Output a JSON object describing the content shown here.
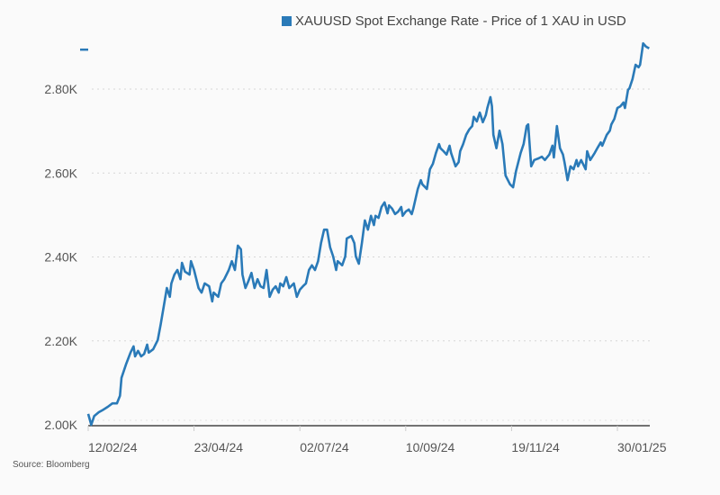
{
  "chart_data": {
    "type": "line",
    "title": "",
    "legend": {
      "label": "XAUUSD Spot Exchange Rate - Price of 1 XAU in USD",
      "placement": "top-right"
    },
    "source": "Source: Bloomberg",
    "color": "#2a7ab8",
    "x_unit": "days since 12/02/24",
    "xlim": [
      0,
      371
    ],
    "ylim": [
      2000,
      2920
    ],
    "x_ticks": [
      {
        "value": 0,
        "label": "12/02/24"
      },
      {
        "value": 70,
        "label": "23/04/24"
      },
      {
        "value": 140,
        "label": "02/07/24"
      },
      {
        "value": 210,
        "label": "10/09/24"
      },
      {
        "value": 280,
        "label": "19/11/24"
      },
      {
        "value": 350,
        "label": "30/01/25"
      }
    ],
    "y_ticks": [
      {
        "value": 2000,
        "label": "2.00K"
      },
      {
        "value": 2200,
        "label": "2.20K"
      },
      {
        "value": 2400,
        "label": "2.40K"
      },
      {
        "value": 2600,
        "label": "2.60K"
      },
      {
        "value": 2800,
        "label": "2.80K"
      }
    ],
    "last_value_marker": 2894,
    "grid": true,
    "x": [
      0,
      2,
      4,
      7,
      10,
      13,
      16,
      19,
      21,
      22,
      25,
      28,
      30,
      31,
      33,
      35,
      37,
      39,
      40,
      43,
      46,
      48,
      50,
      52,
      54,
      55,
      57,
      59,
      61,
      62,
      64,
      67,
      68,
      70,
      73,
      75,
      77,
      80,
      82,
      83,
      86,
      88,
      90,
      93,
      95,
      97,
      99,
      101,
      102,
      104,
      106,
      108,
      110,
      112,
      114,
      116,
      118,
      120,
      122,
      124,
      126,
      127,
      129,
      131,
      133,
      136,
      138,
      140,
      142,
      144,
      146,
      148,
      150,
      152,
      154,
      156,
      158,
      160,
      162,
      164,
      165,
      168,
      170,
      171,
      174,
      176,
      177,
      179,
      181,
      183,
      185,
      187,
      189,
      190,
      192,
      194,
      196,
      198,
      199,
      201,
      203,
      205,
      207,
      208,
      210,
      212,
      214,
      215,
      218,
      220,
      221,
      224,
      226,
      228,
      230,
      232,
      233,
      235,
      237,
      239,
      240,
      243,
      245,
      246,
      248,
      250,
      252,
      254,
      255,
      257,
      259,
      261,
      263,
      264,
      266,
      267,
      268,
      270,
      272,
      274,
      276,
      279,
      281,
      283,
      286,
      288,
      290,
      291,
      293,
      295,
      298,
      300,
      302,
      305,
      307,
      308,
      310,
      312,
      314,
      315,
      317,
      319,
      321,
      323,
      324,
      326,
      329,
      330,
      332,
      335,
      337,
      339,
      340,
      343,
      345,
      346,
      348,
      350,
      352,
      354,
      355,
      357,
      358,
      360,
      362,
      364,
      365,
      367,
      369,
      371
    ],
    "values": [
      2026,
      2000,
      2021,
      2030,
      2036,
      2043,
      2051,
      2051,
      2069,
      2112,
      2144,
      2172,
      2187,
      2163,
      2176,
      2163,
      2169,
      2191,
      2172,
      2180,
      2202,
      2240,
      2283,
      2326,
      2305,
      2337,
      2358,
      2369,
      2347,
      2386,
      2365,
      2358,
      2390,
      2369,
      2326,
      2315,
      2337,
      2330,
      2294,
      2315,
      2305,
      2337,
      2347,
      2369,
      2390,
      2369,
      2427,
      2418,
      2358,
      2326,
      2343,
      2362,
      2326,
      2347,
      2330,
      2326,
      2369,
      2305,
      2322,
      2330,
      2315,
      2337,
      2330,
      2352,
      2326,
      2337,
      2305,
      2322,
      2330,
      2337,
      2369,
      2380,
      2369,
      2390,
      2433,
      2465,
      2465,
      2423,
      2401,
      2369,
      2390,
      2380,
      2401,
      2444,
      2450,
      2433,
      2401,
      2384,
      2433,
      2487,
      2465,
      2498,
      2476,
      2498,
      2493,
      2519,
      2530,
      2504,
      2523,
      2515,
      2502,
      2508,
      2519,
      2498,
      2508,
      2513,
      2502,
      2515,
      2562,
      2583,
      2573,
      2562,
      2609,
      2622,
      2648,
      2669,
      2659,
      2652,
      2644,
      2665,
      2648,
      2616,
      2626,
      2652,
      2669,
      2691,
      2704,
      2712,
      2734,
      2723,
      2744,
      2721,
      2738,
      2755,
      2781,
      2759,
      2691,
      2659,
      2701,
      2669,
      2594,
      2573,
      2566,
      2605,
      2648,
      2669,
      2712,
      2716,
      2616,
      2631,
      2635,
      2639,
      2631,
      2644,
      2665,
      2637,
      2712,
      2659,
      2644,
      2626,
      2583,
      2616,
      2609,
      2631,
      2616,
      2631,
      2609,
      2652,
      2631,
      2648,
      2661,
      2673,
      2665,
      2691,
      2701,
      2716,
      2729,
      2755,
      2759,
      2768,
      2755,
      2798,
      2802,
      2824,
      2858,
      2852,
      2858,
      2909,
      2901,
      2897
    ]
  }
}
